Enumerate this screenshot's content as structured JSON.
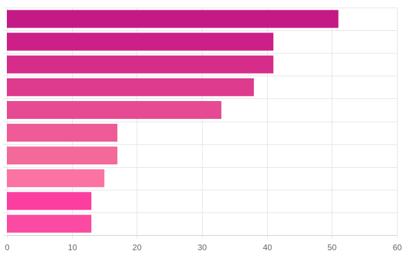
{
  "chart_data": {
    "type": "bar",
    "orientation": "horizontal",
    "title": "",
    "xlabel": "",
    "ylabel": "",
    "categories": [
      "",
      "",
      "",
      "",
      "",
      "",
      "",
      "",
      "",
      ""
    ],
    "values": [
      51,
      41,
      41,
      38,
      33,
      17,
      17,
      15,
      13,
      13
    ],
    "colors": [
      "#c41a86",
      "#cc2088",
      "#d62d8b",
      "#de3a8e",
      "#e64a92",
      "#ee5b96",
      "#f2699a",
      "#fb73a3",
      "#fb3e9f",
      "#fb4aa2"
    ],
    "xlim": [
      0,
      60
    ],
    "xticks": [
      0,
      10,
      20,
      30,
      40,
      50,
      60
    ],
    "grid": true,
    "legend": "none"
  }
}
